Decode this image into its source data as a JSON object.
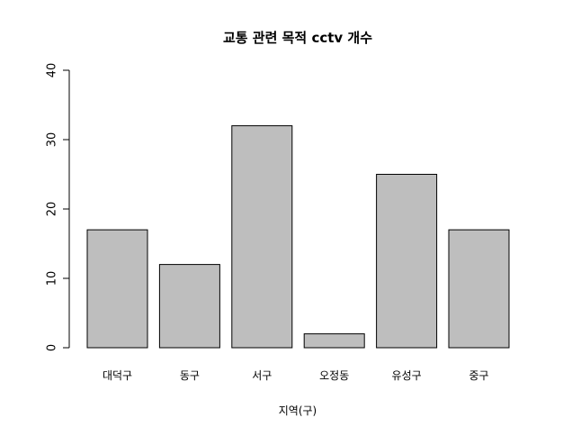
{
  "chart_data": {
    "type": "bar",
    "title": "교통 관련 목적 cctv 개수",
    "xlabel": "지역(구)",
    "ylabel": "",
    "categories": [
      "대덕구",
      "동구",
      "서구",
      "오정동",
      "유성구",
      "중구"
    ],
    "values": [
      17,
      12,
      32,
      2,
      25,
      17
    ],
    "ylim": [
      0,
      40
    ],
    "yticks": [
      "0",
      "10",
      "20",
      "30",
      "40"
    ],
    "grid": false,
    "legend": "none",
    "bar_color": "#bebebe",
    "bar_border_color": "#000000"
  }
}
